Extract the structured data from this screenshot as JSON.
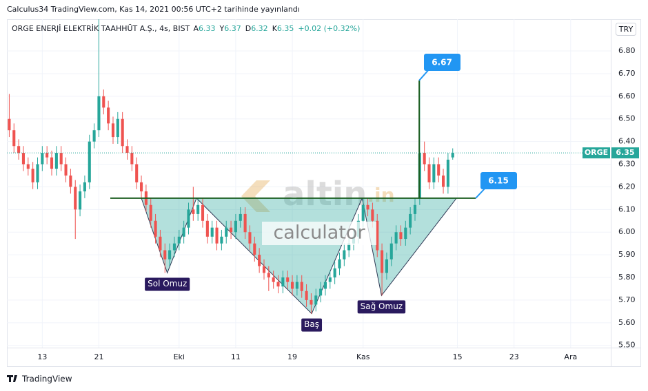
{
  "header": "Calculus34 TradingView.com, Kas 14, 2021 00:56 UTC+2 tarihinde yayınlandı",
  "footer": "TradingView",
  "chart_data": {
    "type": "candlestick",
    "title": "ORGE ENERJİ ELEKTRİK TAAHHÜT A.Ş., 4s, BIST",
    "ohlc_letters": [
      "A",
      "Y",
      "D",
      "K"
    ],
    "change": "+0.02 (+0.32%)",
    "currency": "TRY",
    "symbol": "ORGE",
    "up_color": "#26a69a",
    "down_color": "#ef5350",
    "categories": [
      null,
      null,
      null,
      null,
      null,
      null,
      null,
      "13",
      null,
      null,
      null,
      null,
      null,
      null,
      null,
      null,
      null,
      null,
      null,
      "21",
      null,
      null,
      null,
      null,
      null,
      null,
      null,
      null,
      null,
      null,
      null,
      null,
      null,
      null,
      null,
      null,
      "Eki",
      null,
      null,
      null,
      null,
      null,
      null,
      null,
      null,
      null,
      null,
      null,
      "11",
      null,
      null,
      null,
      null,
      null,
      null,
      null,
      null,
      null,
      null,
      null,
      "19",
      null,
      null,
      null,
      null,
      null,
      null,
      null,
      null,
      null,
      null,
      null,
      null,
      null,
      null,
      "Kas",
      null,
      null,
      null,
      null,
      null,
      null,
      null,
      null,
      null,
      null,
      null,
      null,
      null,
      null,
      null,
      null,
      null,
      null,
      null,
      "15",
      null,
      null,
      null,
      null,
      null,
      null,
      null,
      null,
      null,
      null,
      null,
      "23",
      null,
      null,
      null,
      null,
      null,
      null,
      null,
      null,
      null,
      null,
      null,
      "Ara",
      null,
      null,
      null,
      null,
      null,
      null,
      null,
      null
    ],
    "open": [
      6.5,
      6.45,
      6.38,
      6.35,
      6.3,
      6.28,
      6.22,
      6.3,
      6.35,
      6.33,
      6.28,
      6.35,
      6.3,
      6.25,
      6.2,
      6.1,
      6.18,
      6.22,
      6.4,
      6.45,
      6.6,
      6.55,
      6.48,
      6.42,
      6.5,
      6.38,
      6.35,
      6.3,
      6.22,
      6.18,
      6.12,
      6.05,
      5.98,
      5.92,
      5.88,
      5.92,
      5.95,
      5.98,
      6.02,
      6.1,
      6.08,
      6.12,
      6.05,
      5.98,
      6.02,
      5.95,
      5.98,
      6.02,
      6.0,
      6.05,
      6.08,
      6.0,
      5.95,
      5.9,
      5.85,
      5.82,
      5.8,
      5.78,
      5.76,
      5.8,
      5.78,
      5.75,
      5.78,
      5.74,
      5.7,
      5.68,
      5.72,
      5.75,
      5.78,
      5.8,
      5.84,
      5.88,
      5.92,
      5.95,
      5.98,
      6.05,
      6.12,
      6.1,
      6.05,
      5.92,
      5.82,
      5.88,
      5.95,
      6.0,
      5.97,
      6.02,
      6.08,
      6.15,
      6.35,
      6.3,
      6.22,
      6.3,
      6.25,
      6.2,
      6.33,
      null,
      null,
      null,
      null,
      null,
      null,
      null,
      null,
      null,
      null,
      null,
      null,
      null,
      null,
      null,
      null,
      null,
      null,
      null,
      null,
      null,
      null,
      null,
      null,
      null,
      null,
      null,
      null,
      null,
      null,
      null,
      null,
      null
    ],
    "high": [
      6.61,
      6.48,
      6.41,
      6.38,
      6.33,
      6.31,
      6.33,
      6.38,
      6.38,
      6.36,
      6.38,
      6.38,
      6.33,
      6.28,
      6.23,
      6.21,
      6.25,
      6.43,
      6.48,
      6.94,
      6.63,
      6.58,
      6.51,
      6.53,
      6.53,
      6.41,
      6.38,
      6.33,
      6.25,
      6.21,
      6.15,
      6.08,
      6.01,
      5.95,
      5.95,
      5.98,
      6.01,
      6.05,
      6.13,
      6.2,
      6.15,
      6.15,
      6.08,
      6.05,
      6.05,
      6.01,
      6.05,
      6.05,
      6.08,
      6.11,
      6.11,
      6.03,
      5.98,
      5.93,
      5.88,
      5.85,
      5.83,
      5.81,
      5.83,
      5.83,
      5.81,
      5.81,
      5.81,
      5.77,
      5.73,
      5.75,
      5.78,
      5.81,
      5.83,
      5.87,
      5.91,
      5.95,
      5.98,
      6.01,
      6.08,
      6.15,
      6.15,
      6.13,
      6.08,
      5.95,
      5.91,
      5.98,
      6.03,
      6.03,
      6.05,
      6.11,
      6.15,
      6.67,
      6.4,
      6.33,
      6.33,
      6.33,
      6.28,
      6.35,
      6.37,
      null,
      null,
      null,
      null,
      null,
      null,
      null,
      null,
      null,
      null,
      null,
      null,
      null,
      null,
      null,
      null,
      null,
      null,
      null,
      null,
      null,
      null,
      null,
      null,
      null,
      null,
      null,
      null,
      null,
      null,
      null,
      null,
      null
    ],
    "low": [
      6.42,
      6.35,
      6.32,
      6.27,
      6.25,
      6.19,
      6.19,
      6.27,
      6.3,
      6.25,
      6.25,
      6.27,
      6.22,
      6.17,
      5.97,
      6.07,
      6.15,
      6.19,
      6.37,
      6.42,
      6.52,
      6.45,
      6.39,
      6.39,
      6.35,
      6.32,
      6.27,
      6.19,
      6.15,
      6.09,
      6.02,
      5.95,
      5.89,
      5.82,
      5.85,
      5.89,
      5.92,
      5.95,
      5.99,
      6.05,
      6.05,
      6.02,
      5.95,
      5.95,
      5.92,
      5.92,
      5.95,
      5.97,
      5.97,
      6.02,
      5.97,
      5.92,
      5.87,
      5.82,
      5.79,
      5.74,
      5.75,
      5.73,
      5.73,
      5.75,
      5.72,
      5.72,
      5.71,
      5.67,
      5.64,
      5.65,
      5.69,
      5.72,
      5.75,
      5.77,
      5.81,
      5.85,
      5.89,
      5.92,
      5.95,
      6.02,
      6.07,
      6.02,
      5.89,
      5.72,
      5.79,
      5.85,
      5.92,
      5.94,
      5.94,
      5.99,
      6.05,
      6.12,
      6.27,
      6.19,
      6.19,
      6.22,
      6.17,
      6.17,
      6.32,
      null,
      null,
      null,
      null,
      null,
      null,
      null,
      null,
      null,
      null,
      null,
      null,
      null,
      null,
      null,
      null,
      null,
      null,
      null,
      null,
      null,
      null,
      null,
      null,
      null,
      null,
      null,
      null,
      null,
      null,
      null,
      null,
      null
    ],
    "close": [
      6.45,
      6.38,
      6.35,
      6.3,
      6.28,
      6.22,
      6.3,
      6.35,
      6.33,
      6.28,
      6.35,
      6.3,
      6.25,
      6.2,
      6.1,
      6.18,
      6.22,
      6.4,
      6.45,
      6.6,
      6.55,
      6.48,
      6.42,
      6.5,
      6.38,
      6.35,
      6.3,
      6.22,
      6.18,
      6.12,
      6.05,
      5.98,
      5.92,
      5.88,
      5.92,
      5.95,
      5.98,
      6.02,
      6.1,
      6.08,
      6.12,
      6.05,
      5.98,
      6.02,
      5.95,
      5.98,
      6.02,
      6.0,
      6.05,
      6.08,
      6.0,
      5.95,
      5.9,
      5.85,
      5.82,
      5.8,
      5.78,
      5.76,
      5.8,
      5.78,
      5.75,
      5.78,
      5.74,
      5.7,
      5.68,
      5.72,
      5.75,
      5.78,
      5.8,
      5.84,
      5.88,
      5.92,
      5.95,
      5.98,
      6.05,
      6.12,
      6.1,
      6.05,
      5.92,
      5.82,
      5.88,
      5.95,
      6.0,
      5.97,
      6.02,
      6.08,
      6.12,
      6.35,
      6.3,
      6.22,
      6.3,
      6.25,
      6.2,
      6.32,
      6.35,
      null,
      null,
      null,
      null,
      null,
      null,
      null,
      null,
      null,
      null,
      null,
      null,
      null,
      null,
      null,
      null,
      null,
      null,
      null,
      null,
      null,
      null,
      null,
      null,
      null,
      null,
      null,
      null,
      null,
      null,
      null,
      null,
      null
    ],
    "ylim": [
      5.49,
      6.94
    ],
    "yticks": [
      {
        "value": 5.5,
        "label": "5.50"
      },
      {
        "value": 5.6,
        "label": "5.60"
      },
      {
        "value": 5.7,
        "label": "5.70"
      },
      {
        "value": 5.8,
        "label": "5.80"
      },
      {
        "value": 5.9,
        "label": "5.90"
      },
      {
        "value": 6.0,
        "label": "6.00"
      },
      {
        "value": 6.1,
        "label": "6.10"
      },
      {
        "value": 6.2,
        "label": "6.20"
      },
      {
        "value": 6.3,
        "label": "6.30"
      },
      {
        "value": 6.4,
        "label": "6.40"
      },
      {
        "value": 6.5,
        "label": "6.50"
      },
      {
        "value": 6.6,
        "label": "6.60"
      },
      {
        "value": 6.7,
        "label": "6.70"
      },
      {
        "value": 6.8,
        "label": "6.80"
      }
    ],
    "grid": true,
    "neckline": 6.15,
    "peak": 6.67,
    "pattern": [
      {
        "name": "Sol Omuz",
        "value": 5.82
      },
      {
        "name": "Baş",
        "value": 5.64
      },
      {
        "name": "Sağ Omuz",
        "value": 5.72
      }
    ],
    "watermark": [
      "altin",
      ".in",
      "calculator"
    ]
  }
}
